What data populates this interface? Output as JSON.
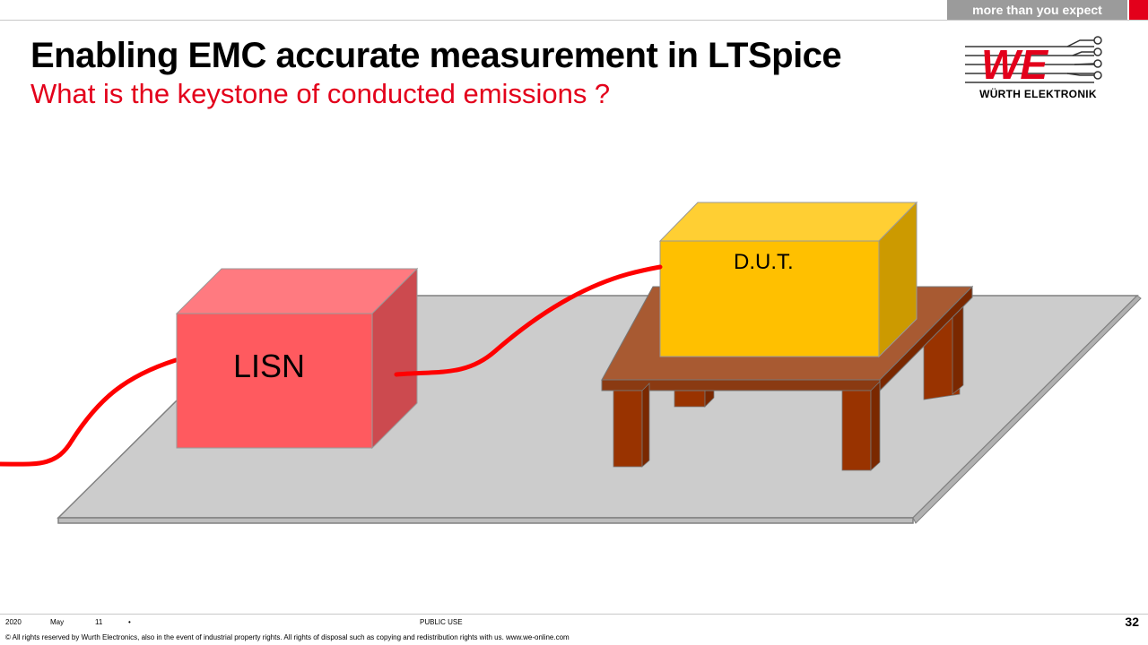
{
  "header": {
    "tagline": "more than you expect",
    "brand_red": "#e3001b",
    "tagline_gray": "#9b9b9b"
  },
  "slide": {
    "title": "Enabling EMC accurate measurement in LTSpice",
    "subtitle": "What is the keystone of conducted emissions ?"
  },
  "logo": {
    "mark": "WE",
    "company": "WÜRTH ELEKTRONIK"
  },
  "diagram": {
    "lisn_label": "LISN",
    "dut_label": "D.U.T.",
    "colors": {
      "ground_plane": "#cccccc",
      "lisn_front": "#ff5a5f",
      "lisn_top": "#ff7a80",
      "lisn_side": "#cc4a4f",
      "dut_front": "#ffc000",
      "dut_top": "#ffcf33",
      "dut_side": "#cc9a00",
      "table_top": "#a85a32",
      "table_legs": "#993300",
      "cable": "#ff0000"
    }
  },
  "footer": {
    "year": "2020",
    "month": "May",
    "day": "11",
    "bullet": "•",
    "classification": "PUBLIC USE",
    "page": "32",
    "copyright": "© All rights reserved by Wurth Electronics, also in the event of industrial property rights. All rights of disposal such as copying and redistribution rights with us. www.we-online.com"
  }
}
